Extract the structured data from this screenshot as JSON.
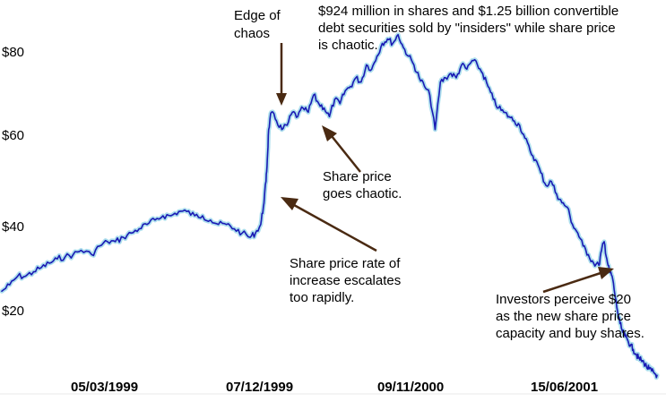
{
  "chart_data": {
    "type": "line",
    "title": "",
    "xlabel": "",
    "ylabel": "",
    "ylim": [
      4,
      88
    ],
    "y_ticks": [
      {
        "label": "$80",
        "value": 80
      },
      {
        "label": "$60",
        "value": 60
      },
      {
        "label": "$40",
        "value": 40
      },
      {
        "label": "$20",
        "value": 20
      }
    ],
    "x_ticks": [
      "05/03/1999",
      "07/12/1999",
      "09/11/2000",
      "15/06/2001"
    ],
    "grid": false,
    "legend": "none",
    "colors": {
      "line": "#1a1ab4",
      "halo": "#9ed8ea"
    },
    "series": [
      {
        "x": [
          0,
          3,
          6,
          9,
          12,
          15,
          18,
          21,
          24,
          27,
          30,
          34,
          37,
          40,
          43,
          46,
          49,
          52,
          55,
          58,
          61,
          64,
          67,
          70,
          73,
          76,
          79,
          82,
          85,
          88,
          91,
          94,
          96,
          98,
          99,
          100,
          100.5,
          101,
          102,
          104,
          106,
          108,
          110,
          112,
          114,
          116,
          118,
          120,
          122,
          124,
          126,
          128,
          130,
          132,
          134,
          136,
          138,
          140,
          142,
          144,
          146,
          148,
          150,
          152,
          154,
          156,
          158,
          160,
          162,
          164,
          166,
          168,
          170,
          172,
          174,
          176,
          178,
          180,
          182,
          184,
          186,
          188,
          190,
          192,
          194,
          196,
          198,
          200,
          202,
          204,
          206,
          208,
          210,
          212,
          214,
          216,
          218,
          220,
          222,
          224,
          226,
          227,
          228,
          229,
          230,
          231,
          232,
          233,
          234,
          235,
          236,
          237,
          238,
          239,
          240,
          241,
          242,
          243,
          244,
          245,
          246,
          247,
          248
        ],
        "y": [
          24.5,
          26,
          28,
          28,
          29,
          30,
          31,
          32,
          32.5,
          33,
          34,
          33,
          35,
          36,
          36,
          37,
          38,
          39,
          40,
          41,
          42,
          42,
          43,
          43,
          42,
          42,
          41,
          40,
          40,
          39,
          38,
          37,
          38,
          40,
          44,
          50,
          55,
          62,
          66,
          64,
          62,
          63,
          66,
          65,
          67,
          66,
          70,
          68,
          67,
          65,
          69,
          68,
          71,
          72,
          74,
          73,
          77,
          76,
          79,
          82,
          83,
          82,
          84,
          81,
          79,
          77,
          74,
          72,
          70,
          62,
          73,
          74,
          75,
          74,
          77,
          76,
          78,
          77,
          75,
          72,
          69,
          67,
          66,
          65,
          64,
          63,
          60,
          57,
          55,
          52,
          49,
          50,
          47,
          45,
          44,
          40,
          38,
          35,
          33,
          31,
          30.5,
          34,
          36,
          32,
          29,
          28,
          24,
          20,
          17,
          15,
          14,
          13,
          12,
          11,
          10,
          9,
          8.5,
          8,
          7,
          6.5,
          6,
          5.5,
          5
        ]
      }
    ],
    "annotations": [
      {
        "lines": [
          "Edge of",
          "chaos"
        ],
        "target": {
          "x": 102,
          "y": 67
        }
      },
      {
        "lines": [
          "$924 million in shares and $1.25 billion convertible",
          "debt securities sold by \"insiders\" while share price",
          "is chaotic."
        ]
      },
      {
        "lines": [
          "Share price",
          "goes chaotic."
        ],
        "target": {
          "x": 118,
          "y": 67
        }
      },
      {
        "lines": [
          "Share price rate of",
          "increase escalates",
          "too rapidly."
        ],
        "target": {
          "x": 104,
          "y": 46
        }
      },
      {
        "lines": [
          "Investors perceive $20",
          "as the new share price",
          "capacity and buy shares."
        ],
        "target": {
          "x": 226,
          "y": 29
        }
      }
    ]
  }
}
